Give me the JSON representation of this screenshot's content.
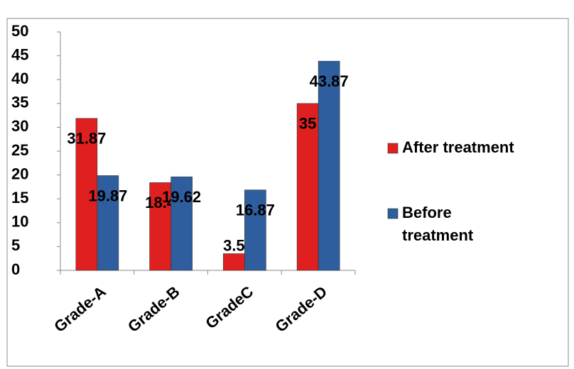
{
  "chart_data": {
    "type": "bar",
    "categories": [
      "Grade-A",
      "Grade-B",
      "GradeC",
      "Grade-D"
    ],
    "series": [
      {
        "name": "After treatment",
        "color": "#e02020",
        "values": [
          31.87,
          18.4,
          3.5,
          35
        ]
      },
      {
        "name": "Before treatment",
        "color": "#2e5e9e",
        "values": [
          19.87,
          19.62,
          16.87,
          43.87
        ]
      }
    ],
    "ylim": [
      0,
      50
    ],
    "yticks": [
      0,
      5,
      10,
      15,
      20,
      25,
      30,
      35,
      40,
      45,
      50
    ],
    "grid": false,
    "legend": "right"
  }
}
